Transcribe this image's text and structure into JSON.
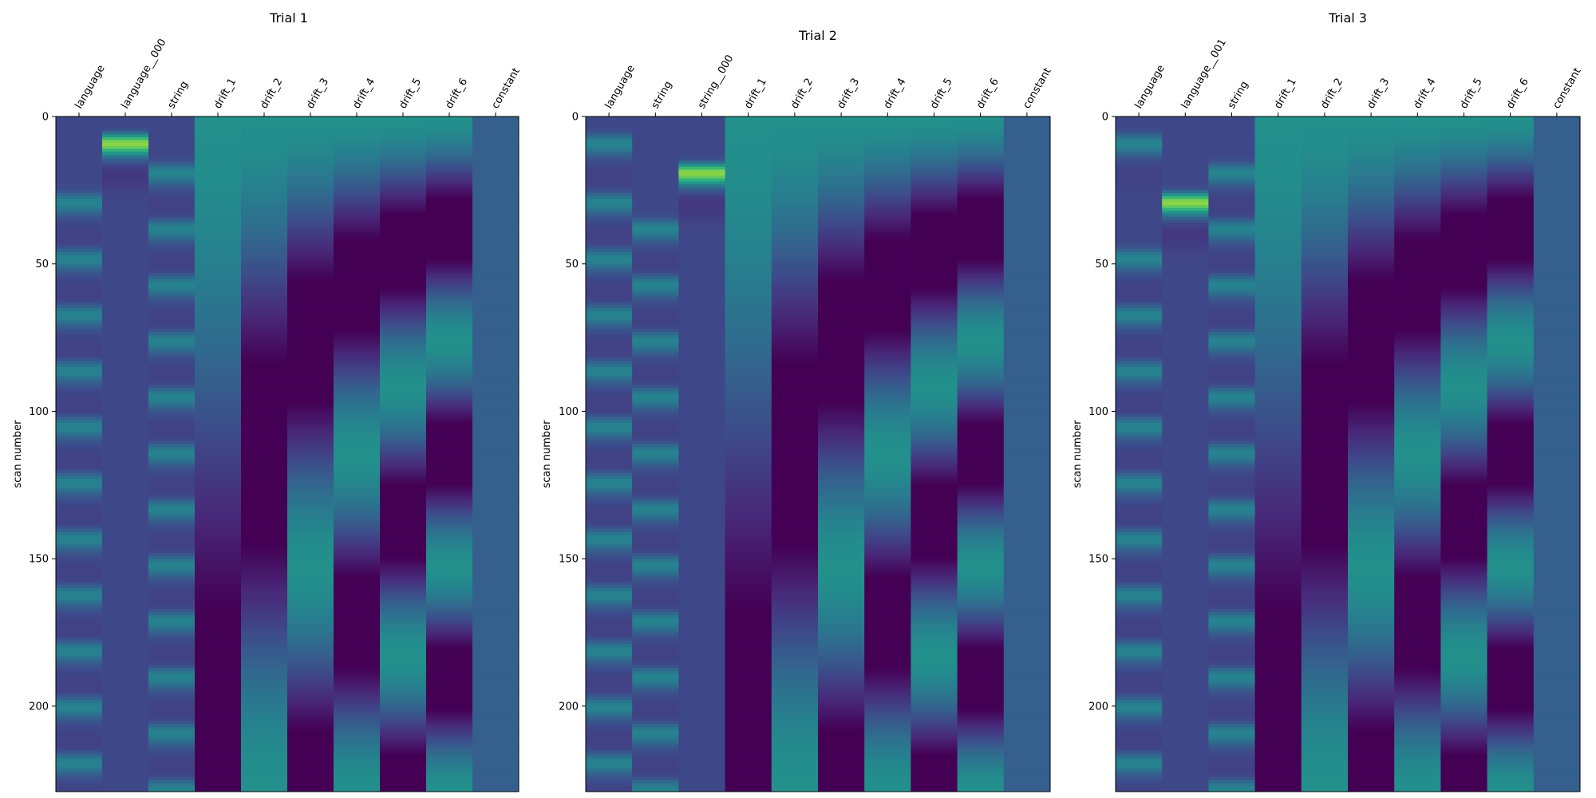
{
  "figure": {
    "title": ""
  },
  "colormap": {
    "name": "viridis",
    "stops": [
      "#440154",
      "#482878",
      "#3e4989",
      "#31688e",
      "#26828e",
      "#1f9e89",
      "#35b779",
      "#6ece58",
      "#b5de2b",
      "#fde725"
    ]
  },
  "chart_data": [
    {
      "type": "heatmap",
      "title": "Trial 1",
      "xlabel": "",
      "ylabel": "scan number",
      "ylim": [
        0,
        229
      ],
      "yticks": [
        0,
        50,
        100,
        150,
        200
      ],
      "n_scans": 229,
      "columns": [
        {
          "name": "language",
          "kind": "block",
          "onsets": [
            25,
            44,
            63,
            82,
            101,
            120,
            139,
            158,
            177,
            196,
            215
          ],
          "duration": 4,
          "peak": 0.52,
          "base": 0.22
        },
        {
          "name": "language__000",
          "kind": "block",
          "onsets": [
            5
          ],
          "duration": 4,
          "peak": 1.0,
          "base": 0.22
        },
        {
          "name": "string",
          "kind": "block",
          "onsets": [
            15,
            34,
            53,
            72,
            91,
            110,
            129,
            148,
            167,
            186,
            205,
            224
          ],
          "duration": 4,
          "peak": 0.52,
          "base": 0.22
        },
        {
          "name": "drift_1",
          "kind": "cos",
          "k": 1,
          "phase": 0,
          "amp": 0.3,
          "center": 0.2
        },
        {
          "name": "drift_2",
          "kind": "cos",
          "k": 2,
          "phase": 0,
          "amp": 0.3,
          "center": 0.2
        },
        {
          "name": "drift_3",
          "kind": "cos",
          "k": 3,
          "phase": 0,
          "amp": 0.3,
          "center": 0.2
        },
        {
          "name": "drift_4",
          "kind": "cos",
          "k": 4,
          "phase": 0,
          "amp": 0.3,
          "center": 0.2
        },
        {
          "name": "drift_5",
          "kind": "cos",
          "k": 5,
          "phase": 0,
          "amp": 0.3,
          "center": 0.2
        },
        {
          "name": "drift_6",
          "kind": "cos",
          "k": 6,
          "phase": 0,
          "amp": 0.3,
          "center": 0.2
        },
        {
          "name": "constant",
          "kind": "const",
          "value": 0.3
        }
      ]
    },
    {
      "type": "heatmap",
      "title": "Trial 2",
      "xlabel": "",
      "ylabel": "scan number",
      "ylim": [
        0,
        229
      ],
      "yticks": [
        0,
        50,
        100,
        150,
        200
      ],
      "n_scans": 229,
      "columns": [
        {
          "name": "language",
          "kind": "block",
          "onsets": [
            5,
            25,
            44,
            63,
            82,
            101,
            120,
            139,
            158,
            177,
            196,
            215
          ],
          "duration": 4,
          "peak": 0.52,
          "base": 0.22
        },
        {
          "name": "string",
          "kind": "block",
          "onsets": [
            34,
            53,
            72,
            91,
            110,
            129,
            148,
            167,
            186,
            205,
            224
          ],
          "duration": 4,
          "peak": 0.52,
          "base": 0.22
        },
        {
          "name": "string__000",
          "kind": "block",
          "onsets": [
            15
          ],
          "duration": 4,
          "peak": 1.0,
          "base": 0.22
        },
        {
          "name": "drift_1",
          "kind": "cos",
          "k": 1,
          "phase": 0,
          "amp": 0.3,
          "center": 0.2
        },
        {
          "name": "drift_2",
          "kind": "cos",
          "k": 2,
          "phase": 0,
          "amp": 0.3,
          "center": 0.2
        },
        {
          "name": "drift_3",
          "kind": "cos",
          "k": 3,
          "phase": 0,
          "amp": 0.3,
          "center": 0.2
        },
        {
          "name": "drift_4",
          "kind": "cos",
          "k": 4,
          "phase": 0,
          "amp": 0.3,
          "center": 0.2
        },
        {
          "name": "drift_5",
          "kind": "cos",
          "k": 5,
          "phase": 0,
          "amp": 0.3,
          "center": 0.2
        },
        {
          "name": "drift_6",
          "kind": "cos",
          "k": 6,
          "phase": 0,
          "amp": 0.3,
          "center": 0.2
        },
        {
          "name": "constant",
          "kind": "const",
          "value": 0.3
        }
      ]
    },
    {
      "type": "heatmap",
      "title": "Trial 3",
      "xlabel": "",
      "ylabel": "scan number",
      "ylim": [
        0,
        229
      ],
      "yticks": [
        0,
        50,
        100,
        150,
        200
      ],
      "n_scans": 229,
      "columns": [
        {
          "name": "language",
          "kind": "block",
          "onsets": [
            5,
            44,
            63,
            82,
            101,
            120,
            139,
            158,
            177,
            196,
            215
          ],
          "duration": 4,
          "peak": 0.52,
          "base": 0.22
        },
        {
          "name": "language__001",
          "kind": "block",
          "onsets": [
            25
          ],
          "duration": 4,
          "peak": 1.0,
          "base": 0.22
        },
        {
          "name": "string",
          "kind": "block",
          "onsets": [
            15,
            34,
            53,
            72,
            91,
            110,
            129,
            148,
            167,
            186,
            205,
            224
          ],
          "duration": 4,
          "peak": 0.52,
          "base": 0.22
        },
        {
          "name": "drift_1",
          "kind": "cos",
          "k": 1,
          "phase": 0,
          "amp": 0.3,
          "center": 0.2
        },
        {
          "name": "drift_2",
          "kind": "cos",
          "k": 2,
          "phase": 0,
          "amp": 0.3,
          "center": 0.2
        },
        {
          "name": "drift_3",
          "kind": "cos",
          "k": 3,
          "phase": 0,
          "amp": 0.3,
          "center": 0.2
        },
        {
          "name": "drift_4",
          "kind": "cos",
          "k": 4,
          "phase": 0,
          "amp": 0.3,
          "center": 0.2
        },
        {
          "name": "drift_5",
          "kind": "cos",
          "k": 5,
          "phase": 0,
          "amp": 0.3,
          "center": 0.2
        },
        {
          "name": "drift_6",
          "kind": "cos",
          "k": 6,
          "phase": 0,
          "amp": 0.3,
          "center": 0.2
        },
        {
          "name": "constant",
          "kind": "const",
          "value": 0.3
        }
      ]
    }
  ]
}
